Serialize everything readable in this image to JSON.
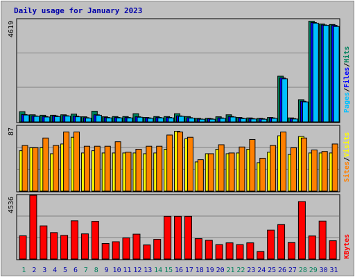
{
  "title": "Daily usage for January 2023",
  "colors": {
    "background": "#c0c0c0",
    "title": "#0000aa",
    "hits": "#00805c",
    "files": "#0000ff",
    "pages": "#00c0ff",
    "visits": "#ffff00",
    "sites": "#ff8000",
    "kbytes": "#ff0000",
    "weekend_day": "#00805c",
    "weekday_day": "#0000aa"
  },
  "chart_data": [
    {
      "type": "bar",
      "panel": "hits-files-pages",
      "ylabel_max": "4619",
      "ylim": [
        0,
        4619
      ],
      "grid": true,
      "legend": [
        "Pages",
        "/",
        "Files",
        "/",
        "Hits"
      ],
      "series": [
        {
          "name": "Hits",
          "values": [
            460,
            320,
            300,
            300,
            320,
            350,
            230,
            480,
            230,
            240,
            240,
            370,
            200,
            240,
            240,
            370,
            240,
            160,
            160,
            230,
            320,
            200,
            180,
            160,
            200,
            2060,
            180,
            1000,
            4540,
            4410,
            4390
          ]
        },
        {
          "name": "Files",
          "values": [
            330,
            270,
            240,
            270,
            280,
            260,
            190,
            320,
            200,
            200,
            200,
            230,
            180,
            200,
            200,
            270,
            190,
            130,
            140,
            180,
            240,
            170,
            150,
            140,
            180,
            1980,
            150,
            930,
            4480,
            4370,
            4350
          ]
        },
        {
          "name": "Pages",
          "values": [
            310,
            250,
            220,
            240,
            260,
            230,
            170,
            300,
            180,
            180,
            180,
            210,
            160,
            180,
            180,
            250,
            170,
            120,
            120,
            160,
            220,
            150,
            130,
            120,
            160,
            1940,
            130,
            900,
            4450,
            4350,
            4300
          ]
        }
      ]
    },
    {
      "type": "bar",
      "panel": "visits-sites",
      "ylabel_max": "87",
      "ylim": [
        0,
        87
      ],
      "grid": true,
      "legend": [
        "Sites",
        "/",
        "Visits"
      ],
      "series": [
        {
          "name": "Visits",
          "values": [
            54,
            58,
            58,
            50,
            63,
            72,
            51,
            54,
            51,
            51,
            51,
            51,
            50,
            51,
            56,
            80,
            70,
            39,
            50,
            56,
            50,
            51,
            56,
            38,
            52,
            74,
            49,
            73,
            51,
            51,
            51
          ]
        },
        {
          "name": "Sites",
          "values": [
            61,
            58,
            71,
            61,
            79,
            79,
            60,
            60,
            60,
            66,
            52,
            56,
            60,
            60,
            75,
            79,
            72,
            42,
            50,
            62,
            51,
            59,
            69,
            44,
            61,
            79,
            58,
            71,
            55,
            53,
            63
          ]
        }
      ]
    },
    {
      "type": "bar",
      "panel": "kbytes",
      "ylabel_max": "4536",
      "ylim": [
        0,
        4536
      ],
      "grid": true,
      "legend": [
        "KBytes"
      ],
      "categories": [
        "1",
        "2",
        "3",
        "4",
        "5",
        "6",
        "7",
        "8",
        "9",
        "10",
        "11",
        "12",
        "13",
        "14",
        "15",
        "16",
        "17",
        "18",
        "19",
        "20",
        "21",
        "22",
        "23",
        "24",
        "25",
        "26",
        "27",
        "28",
        "29",
        "30",
        "31"
      ],
      "weekend_days": [
        "1",
        "7",
        "8",
        "14",
        "15",
        "21",
        "22",
        "28",
        "29"
      ],
      "series": [
        {
          "name": "KBytes",
          "values": [
            1650,
            4536,
            2360,
            1880,
            1680,
            2720,
            1790,
            2680,
            1110,
            1230,
            1500,
            1770,
            1000,
            1400,
            3040,
            3040,
            3040,
            1450,
            1330,
            1020,
            1150,
            1020,
            1150,
            530,
            2060,
            2450,
            1170,
            4090,
            1640,
            2700,
            1300
          ]
        }
      ]
    }
  ]
}
